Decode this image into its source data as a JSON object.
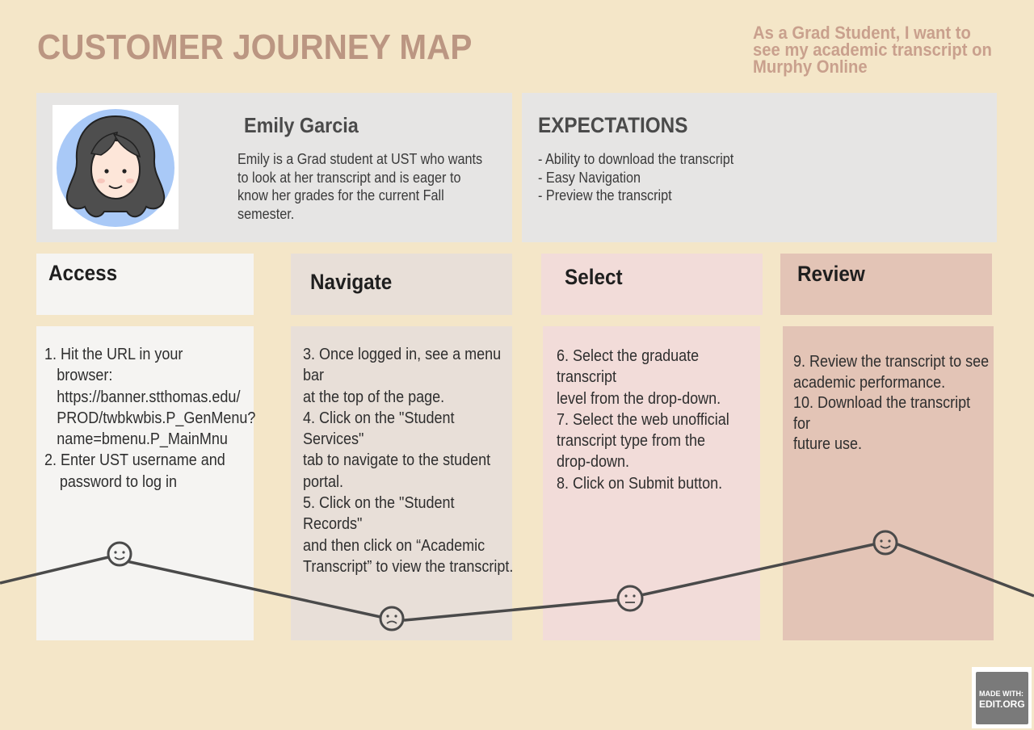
{
  "header": {
    "title": "CUSTOMER JOURNEY MAP",
    "user_story": "As a Grad Student, I want to see my academic transcript on Murphy Online"
  },
  "persona": {
    "name": "Emily Garcia",
    "description": "Emily is a Grad student at UST who wants to look at her transcript and is eager to know her grades for the current Fall semester.",
    "avatar_icon": "woman-avatar-icon"
  },
  "expectations": {
    "title": "EXPECTATIONS",
    "items": [
      "- Ability to download the transcript",
      "- Easy Navigation",
      "- Preview the transcript"
    ]
  },
  "stages": [
    {
      "name": "Access",
      "steps": [
        {
          "text": "1. Hit the URL in your",
          "indent": 0
        },
        {
          "text": "browser:",
          "indent": 1
        },
        {
          "text": "https://banner.stthomas.edu/",
          "indent": 1
        },
        {
          "text": "PROD/twbkwbis.P_GenMenu?",
          "indent": 1
        },
        {
          "text": "name=bmenu.P_MainMnu",
          "indent": 1
        },
        {
          "text": "2. Enter UST username and",
          "indent": 0
        },
        {
          "text": "password to log in",
          "indent": 2
        }
      ]
    },
    {
      "name": "Navigate",
      "steps": [
        {
          "text": "3. Once logged in, see a menu bar",
          "indent": 0
        },
        {
          "text": "at the top of the page.",
          "indent": 0
        },
        {
          "text": "4. Click on the \"Student Services\"",
          "indent": 0
        },
        {
          "text": "tab to navigate to the student",
          "indent": 0
        },
        {
          "text": "portal.",
          "indent": 0
        },
        {
          "text": "5. Click on the \"Student Records\"",
          "indent": 0
        },
        {
          "text": "and then click on “Academic",
          "indent": 0
        },
        {
          "text": "Transcript” to view the transcript.",
          "indent": 0
        }
      ]
    },
    {
      "name": "Select",
      "steps": [
        {
          "text": "6. Select the graduate transcript",
          "indent": 0
        },
        {
          "text": "level from the drop-down.",
          "indent": 0
        },
        {
          "text": "7. Select the web unofficial",
          "indent": 0
        },
        {
          "text": "transcript type from the",
          "indent": 0
        },
        {
          "text": "drop-down.",
          "indent": 0
        },
        {
          "text": "8. Click on Submit button.",
          "indent": 0
        }
      ]
    },
    {
      "name": "Review",
      "steps": [
        {
          "text": "9. Review the transcript to see",
          "indent": 0
        },
        {
          "text": "academic performance.",
          "indent": 0
        },
        {
          "text": "10. Download the transcript for",
          "indent": 0
        },
        {
          "text": "future use.",
          "indent": 0
        }
      ]
    }
  ],
  "emotion_curve": {
    "moods": [
      "happy",
      "sad",
      "neutral",
      "happy"
    ],
    "icons": [
      "smiling-face-icon",
      "sad-face-icon",
      "neutral-face-icon",
      "smiling-face-icon"
    ]
  },
  "badge": {
    "line1": "MADE WITH:",
    "line2": "EDIT.ORG"
  },
  "colors": {
    "background": "#f4e6c8",
    "title": "#bb9682",
    "access": "#f5f4f2",
    "navigate": "#e8dfd8",
    "select": "#f2dcd9",
    "review": "#e3c4b6",
    "curve": "#4a4a4a"
  }
}
